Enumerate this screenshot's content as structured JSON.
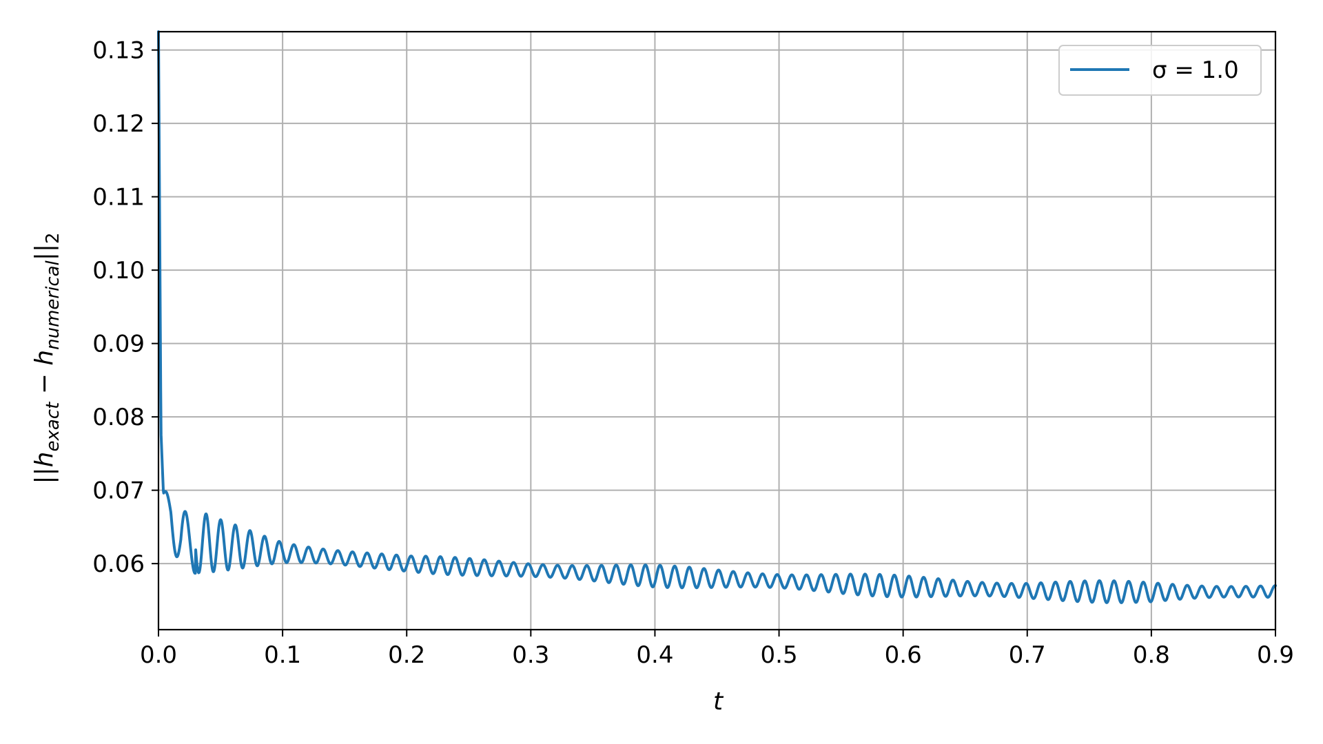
{
  "chart_data": {
    "type": "line",
    "xlabel": "t",
    "ylabel_parts": {
      "open": "||h",
      "sub1": "exact",
      "minus": " − h",
      "sub2": "numerical",
      "close": "||",
      "sub3": "2"
    },
    "xlim": [
      0.0,
      0.9
    ],
    "ylim": [
      0.051,
      0.1325
    ],
    "xticks": [
      "0.0",
      "0.1",
      "0.2",
      "0.3",
      "0.4",
      "0.5",
      "0.6",
      "0.7",
      "0.8",
      "0.9"
    ],
    "yticks": [
      "0.06",
      "0.07",
      "0.08",
      "0.09",
      "0.10",
      "0.11",
      "0.12",
      "0.13"
    ],
    "grid": true,
    "legend_position": "top-right",
    "series": [
      {
        "name": "σ = 1.0",
        "color": "#1f77b4",
        "oscillation_period": 0.0118,
        "envelope": [
          [
            0.0,
            0.1325,
            0.0
          ],
          [
            0.002,
            0.078,
            0.0
          ],
          [
            0.004,
            0.068,
            0.0015
          ],
          [
            0.01,
            0.0685,
            0.0028
          ],
          [
            0.018,
            0.0615,
            0.0048
          ],
          [
            0.03,
            0.063,
            0.0035
          ],
          [
            0.05,
            0.0625,
            0.0028
          ],
          [
            0.1,
            0.0615,
            0.0015
          ],
          [
            0.2,
            0.06,
            0.0009
          ],
          [
            0.3,
            0.0591,
            0.0011
          ],
          [
            0.4,
            0.0583,
            0.0012
          ],
          [
            0.5,
            0.0576,
            0.0012
          ],
          [
            0.6,
            0.0569,
            0.0012
          ],
          [
            0.7,
            0.0563,
            0.0012
          ],
          [
            0.8,
            0.0561,
            0.0012
          ],
          [
            0.9,
            0.0562,
            0.0008
          ]
        ]
      }
    ]
  }
}
